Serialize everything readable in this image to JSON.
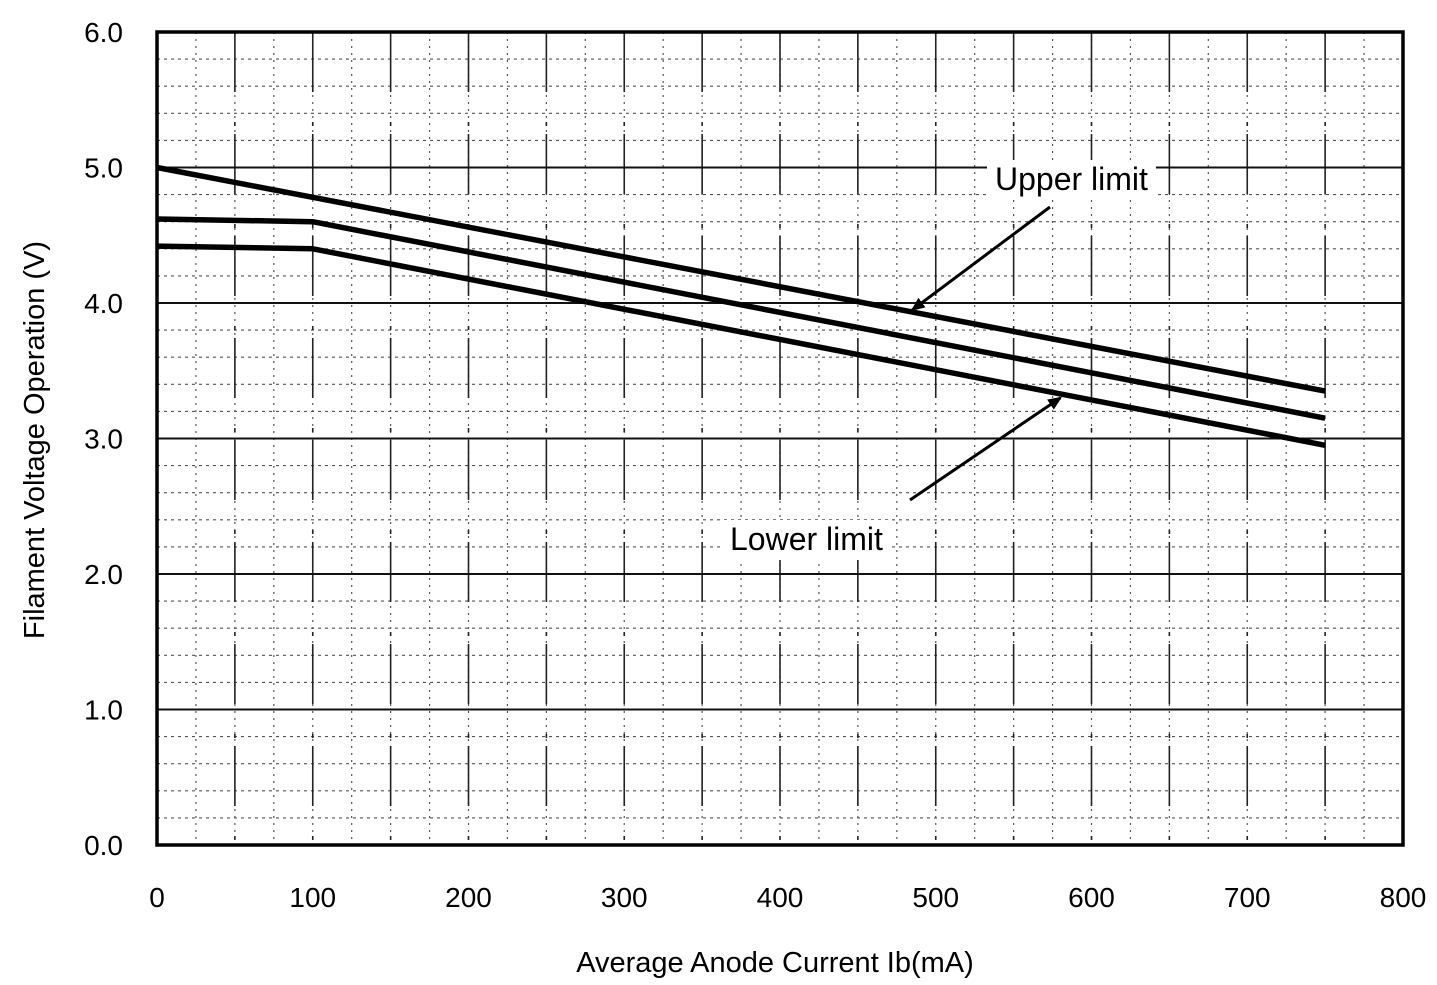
{
  "chart_data": {
    "type": "line",
    "xlabel": "Average Anode Current   Ib(mA)",
    "ylabel": "Filament Voltage Operation (V)",
    "xlim": [
      0,
      800
    ],
    "ylim": [
      0.0,
      6.0
    ],
    "x_ticks": [
      "0",
      "100",
      "200",
      "300",
      "400",
      "500",
      "600",
      "700",
      "800"
    ],
    "y_ticks": [
      "0.0",
      "1.0",
      "2.0",
      "3.0",
      "4.0",
      "5.0",
      "6.0"
    ],
    "grid": true,
    "series": [
      {
        "name": "Upper limit",
        "x": [
          0,
          750
        ],
        "y": [
          5.0,
          3.35
        ]
      },
      {
        "name": "",
        "x": [
          0,
          100,
          750
        ],
        "y": [
          4.62,
          4.6,
          3.15
        ]
      },
      {
        "name": "Lower limit",
        "x": [
          0,
          100,
          750
        ],
        "y": [
          4.42,
          4.4,
          2.95
        ]
      }
    ],
    "annotations": [
      {
        "text": "Upper limit",
        "points_to_series": 0,
        "arrow_to": [
          485,
          3.95
        ]
      },
      {
        "text": "Lower limit",
        "points_to_series": 2,
        "arrow_to": [
          580,
          3.3
        ]
      }
    ]
  }
}
